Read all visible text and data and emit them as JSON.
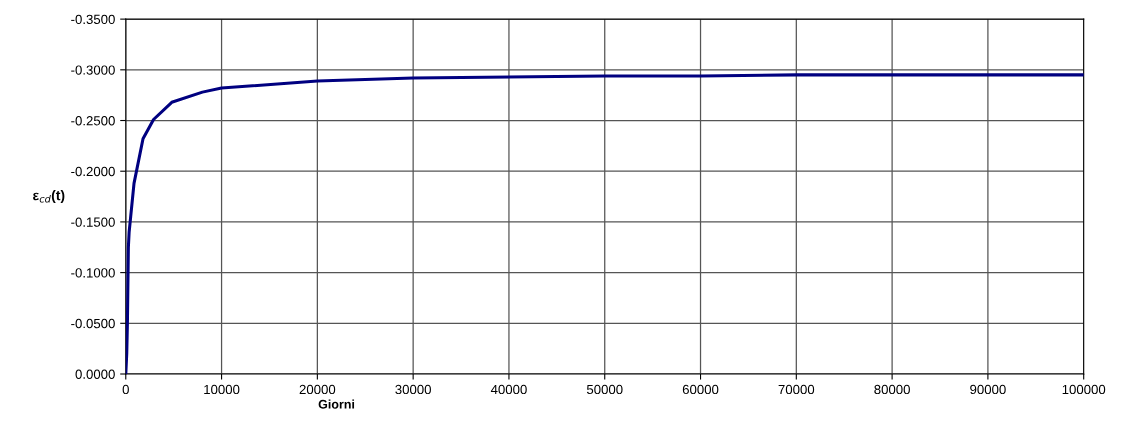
{
  "chart_data": {
    "type": "line",
    "xlabel": "Giorni",
    "ylabel": "ε$_{cd}$(t)",
    "x": [
      0,
      100,
      170,
      270,
      350,
      510,
      860,
      1800,
      2900,
      4800,
      8000,
      10000,
      20000,
      30000,
      50000,
      60000,
      70000,
      100000
    ],
    "series": [
      {
        "color": "#000080",
        "values": [
          0,
          -0.02,
          -0.05,
          -0.125,
          -0.14,
          -0.155,
          -0.188,
          -0.232,
          -0.251,
          -0.268,
          -0.278,
          -0.282,
          -0.289,
          -0.292,
          -0.294,
          -0.294,
          -0.295,
          -0.295
        ]
      }
    ],
    "xlim": [
      0,
      100000
    ],
    "xticks": [
      0,
      10000,
      20000,
      30000,
      40000,
      50000,
      60000,
      70000,
      80000,
      90000,
      100000
    ],
    "ylim": [
      0,
      -0.35
    ],
    "yticks": [
      {
        "value": 0,
        "label": "0.0000"
      },
      {
        "value": -0.05,
        "label": "-0.0500"
      },
      {
        "value": -0.1,
        "label": "-0.1000"
      },
      {
        "value": -0.15,
        "label": "-0.1500"
      },
      {
        "value": -0.2,
        "label": "-0.2000"
      },
      {
        "value": -0.25,
        "label": "-0.2500"
      },
      {
        "value": -0.3,
        "label": "-0.3000"
      },
      {
        "value": -0.35,
        "label": "-0.3500"
      }
    ],
    "grid": true,
    "marker": "none",
    "line_style": "solid"
  }
}
